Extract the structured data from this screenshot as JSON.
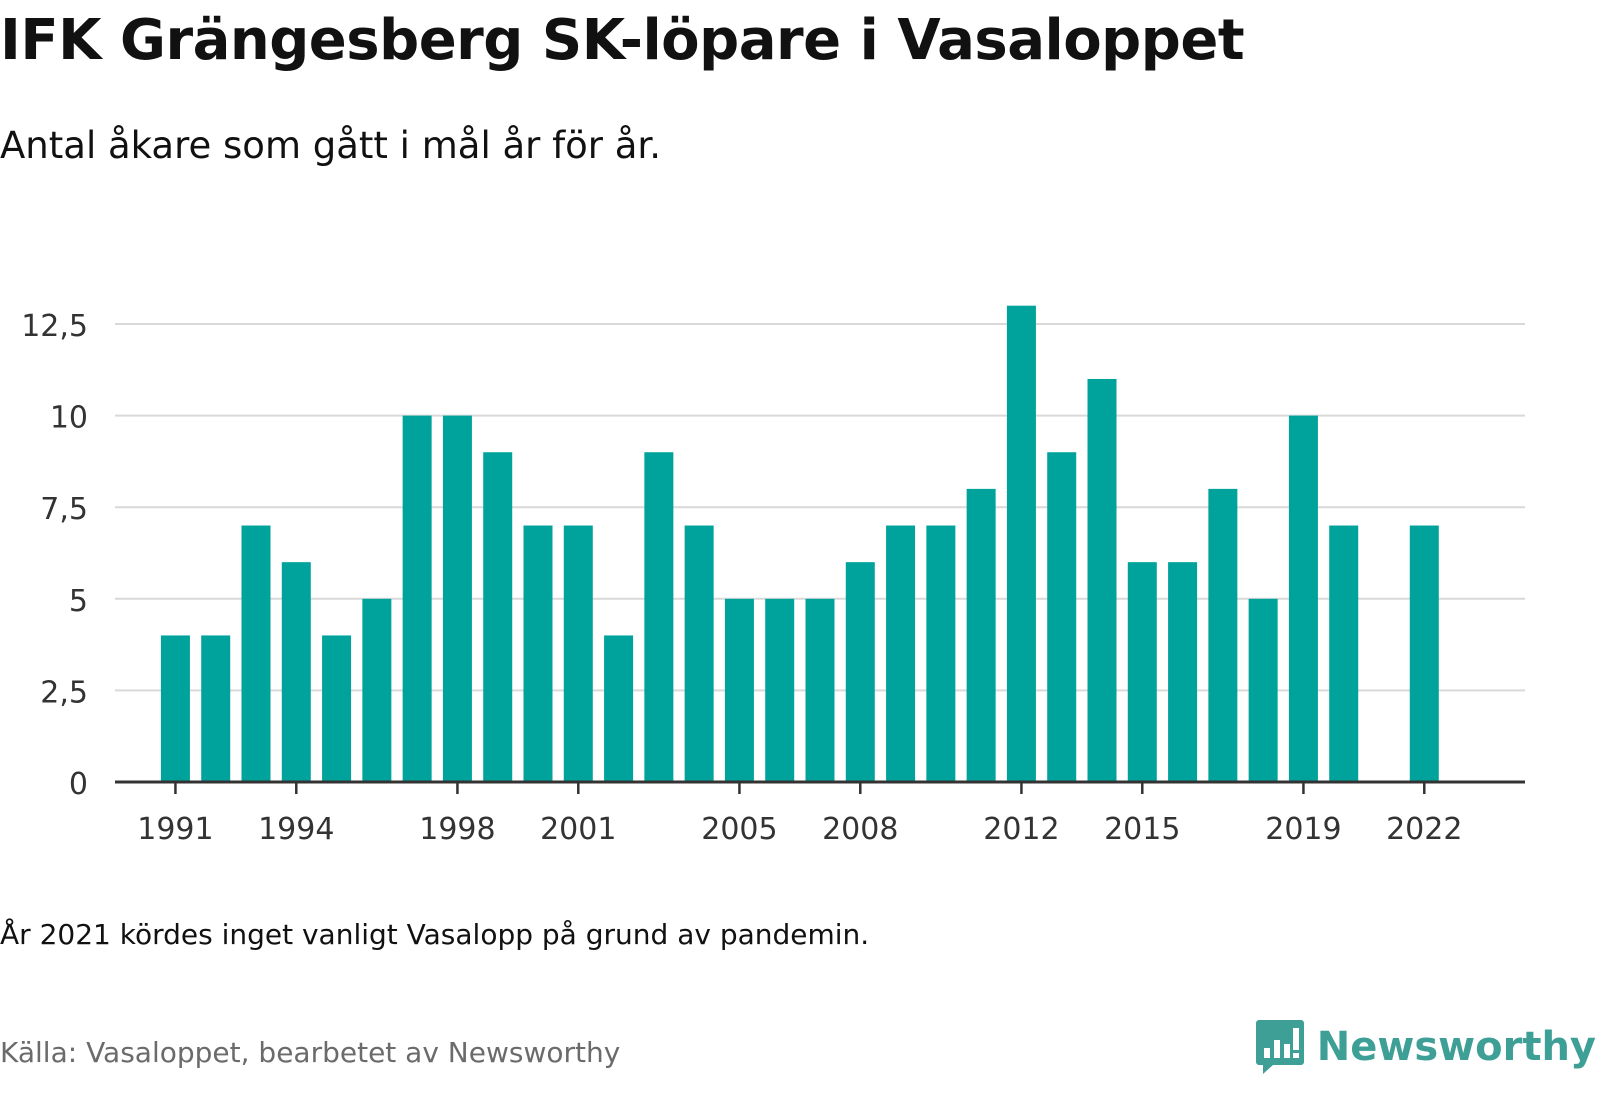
{
  "title": "IFK Grängesberg SK-löpare i Vasaloppet",
  "subtitle": "Antal åkare som gått i mål år för år.",
  "note": "År 2021 kördes inget vanligt Vasalopp på grund av pandemin.",
  "source": "Källa: Vasaloppet, bearbetet av Newsworthy",
  "brand": {
    "name": "Newsworthy",
    "icon": "newsworthy-logo-icon",
    "color": "#3e9f96"
  },
  "colors": {
    "bar": "#00a39c",
    "grid": "#d9d9d9",
    "axis": "#333333",
    "text": "#111111"
  },
  "chart_data": {
    "type": "bar",
    "title": "IFK Grängesberg SK-löpare i Vasaloppet",
    "subtitle": "Antal åkare som gått i mål år för år.",
    "xlabel": "",
    "ylabel": "",
    "ylim": [
      0,
      13
    ],
    "y_ticks": [
      0,
      2.5,
      5,
      7.5,
      10,
      12.5
    ],
    "y_tick_labels": [
      "0",
      "2,5",
      "5",
      "7,5",
      "10",
      "12,5"
    ],
    "x_tick_labels": [
      "1991",
      "1994",
      "1998",
      "2001",
      "2005",
      "2008",
      "2012",
      "2015",
      "2019",
      "2022"
    ],
    "grid": true,
    "legend": false,
    "categories": [
      1991,
      1992,
      1993,
      1994,
      1995,
      1996,
      1997,
      1998,
      1999,
      2000,
      2001,
      2002,
      2003,
      2004,
      2005,
      2006,
      2007,
      2008,
      2009,
      2010,
      2011,
      2012,
      2013,
      2014,
      2015,
      2016,
      2017,
      2018,
      2019,
      2020,
      2022
    ],
    "values": [
      4,
      4,
      7,
      6,
      4,
      5,
      10,
      10,
      9,
      7,
      7,
      4,
      9,
      7,
      5,
      5,
      5,
      6,
      7,
      7,
      8,
      13,
      9,
      11,
      6,
      6,
      8,
      5,
      10,
      7,
      7
    ]
  }
}
